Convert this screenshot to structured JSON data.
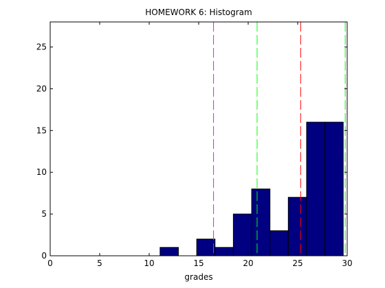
{
  "chart_data": {
    "type": "bar",
    "title": "HOMEWORK 6: Histogram",
    "xlabel": "grades",
    "ylabel": "",
    "xlim": [
      0,
      30
    ],
    "ylim": [
      0,
      28
    ],
    "xticks": [
      0,
      5,
      10,
      15,
      20,
      25,
      30
    ],
    "yticks": [
      0,
      5,
      10,
      15,
      20,
      25
    ],
    "bin_width": 1.85,
    "bins": [
      {
        "start": 11.1,
        "count": 1
      },
      {
        "start": 14.8,
        "count": 2
      },
      {
        "start": 16.65,
        "count": 1
      },
      {
        "start": 18.5,
        "count": 5
      },
      {
        "start": 20.35,
        "count": 8
      },
      {
        "start": 22.2,
        "count": 3
      },
      {
        "start": 24.05,
        "count": 7
      },
      {
        "start": 25.9,
        "count": 16
      },
      {
        "start": 27.75,
        "count": 16
      }
    ],
    "bar_color": "#000080",
    "vertical_lines": [
      {
        "x": 16.5,
        "color": "#ff00ff",
        "style": "dashed"
      },
      {
        "x": 20.9,
        "color": "#00ff00",
        "style": "dashed"
      },
      {
        "x": 25.3,
        "color": "#ff0000",
        "style": "dashed"
      },
      {
        "x": 29.8,
        "color": "#00ff00",
        "style": "dashed"
      }
    ],
    "grid": false
  }
}
